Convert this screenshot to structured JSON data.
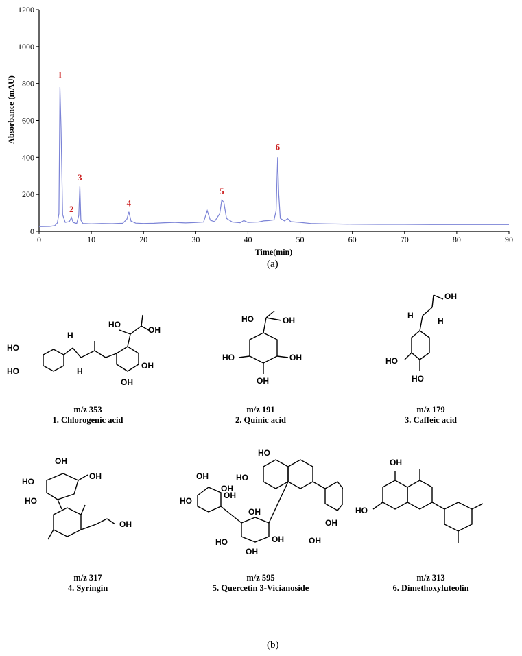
{
  "panel_labels": {
    "a": "(a)",
    "b": "(b)"
  },
  "chart_data": {
    "type": "line",
    "xlabel": "Time(min)",
    "ylabel": "Absorbance (mAU)",
    "xlim": [
      0,
      90
    ],
    "ylim": [
      0,
      1200
    ],
    "x_ticks": [
      0,
      10,
      20,
      30,
      40,
      50,
      60,
      70,
      80,
      90
    ],
    "y_ticks": [
      0,
      200,
      400,
      600,
      800,
      1000,
      1200
    ],
    "grid": false,
    "line_color": "#7b83d6",
    "label_color": "#cc2222",
    "series": [
      {
        "points": [
          [
            0,
            25
          ],
          [
            2,
            26
          ],
          [
            3,
            30
          ],
          [
            3.5,
            45
          ],
          [
            3.8,
            95
          ],
          [
            4.0,
            780
          ],
          [
            4.2,
            560
          ],
          [
            4.5,
            90
          ],
          [
            5,
            48
          ],
          [
            5.8,
            52
          ],
          [
            6.2,
            75
          ],
          [
            6.5,
            48
          ],
          [
            7.2,
            42
          ],
          [
            7.6,
            85
          ],
          [
            7.8,
            245
          ],
          [
            8.0,
            60
          ],
          [
            8.4,
            42
          ],
          [
            10,
            40
          ],
          [
            12,
            42
          ],
          [
            14,
            41
          ],
          [
            16,
            43
          ],
          [
            16.8,
            65
          ],
          [
            17.2,
            105
          ],
          [
            17.6,
            55
          ],
          [
            18.5,
            44
          ],
          [
            20,
            42
          ],
          [
            22,
            43
          ],
          [
            24,
            46
          ],
          [
            26,
            48
          ],
          [
            28,
            45
          ],
          [
            30,
            47
          ],
          [
            31.5,
            50
          ],
          [
            32.2,
            112
          ],
          [
            32.8,
            60
          ],
          [
            33.6,
            52
          ],
          [
            34.6,
            95
          ],
          [
            35.0,
            170
          ],
          [
            35.4,
            155
          ],
          [
            35.9,
            70
          ],
          [
            37,
            50
          ],
          [
            38.5,
            46
          ],
          [
            39.2,
            58
          ],
          [
            40,
            48
          ],
          [
            42,
            50
          ],
          [
            43,
            56
          ],
          [
            44,
            58
          ],
          [
            45,
            62
          ],
          [
            45.4,
            110
          ],
          [
            45.7,
            400
          ],
          [
            45.9,
            200
          ],
          [
            46.2,
            70
          ],
          [
            47,
            56
          ],
          [
            47.6,
            68
          ],
          [
            48.2,
            52
          ],
          [
            50,
            48
          ],
          [
            52,
            42
          ],
          [
            55,
            40
          ],
          [
            60,
            38
          ],
          [
            65,
            37
          ],
          [
            70,
            37
          ],
          [
            75,
            36
          ],
          [
            80,
            36
          ],
          [
            85,
            36
          ],
          [
            90,
            36
          ]
        ]
      }
    ],
    "peak_labels": [
      {
        "label": "1",
        "x": 4.0,
        "y": 800
      },
      {
        "label": "2",
        "x": 6.2,
        "y": 75
      },
      {
        "label": "3",
        "x": 7.8,
        "y": 245
      },
      {
        "label": "4",
        "x": 17.2,
        "y": 105
      },
      {
        "label": "5",
        "x": 35.0,
        "y": 170
      },
      {
        "label": "6",
        "x": 45.7,
        "y": 410
      }
    ]
  },
  "compounds": [
    {
      "mz": "m/z 353",
      "name": "1. Chlorogenic acid",
      "atoms": {
        "cooh_ho": "HO",
        "cooh_oh": "OH",
        "ho3": "HO",
        "ho4": "HO",
        "h1": "H",
        "h2": "H",
        "oh_a": "OH",
        "oh_b": "OH"
      }
    },
    {
      "mz": "m/z 191",
      "name": "2. Quinic acid",
      "atoms": {
        "ho_top": "HO",
        "cooh_oh": "OH",
        "ho_left": "HO",
        "oh_right": "OH",
        "oh_bottom": "OH"
      }
    },
    {
      "mz": "m/z 179",
      "name": "3. Caffeic acid",
      "atoms": {
        "cooh_oh": "OH",
        "h1": "H",
        "h2": "H",
        "ho3": "HO",
        "ho4": "HO"
      }
    },
    {
      "mz": "m/z 317",
      "name": "4. Syringin",
      "atoms": {
        "oh_top": "OH",
        "ho_left": "HO",
        "oh_ch2": "OH",
        "ho_low": "HO",
        "oh_end": "OH"
      }
    },
    {
      "mz": "m/z 595",
      "name": "5. Quercetin 3-Vicianoside",
      "atoms": {
        "ho_top": "HO",
        "ho_mid": "HO",
        "oh_ara1": "OH",
        "ho_ara": "HO",
        "oh_ara2": "OH",
        "oh_a": "OH",
        "oh_b": "OH",
        "oh_ring1": "OH",
        "oh_ring2": "OH",
        "ho_glc": "HO",
        "oh_glc1": "OH",
        "oh_glc2": "OH"
      }
    },
    {
      "mz": "m/z 313",
      "name": "6. Dimethoxyluteolin",
      "atoms": {
        "oh_top": "OH",
        "ho_left": "HO"
      }
    }
  ]
}
